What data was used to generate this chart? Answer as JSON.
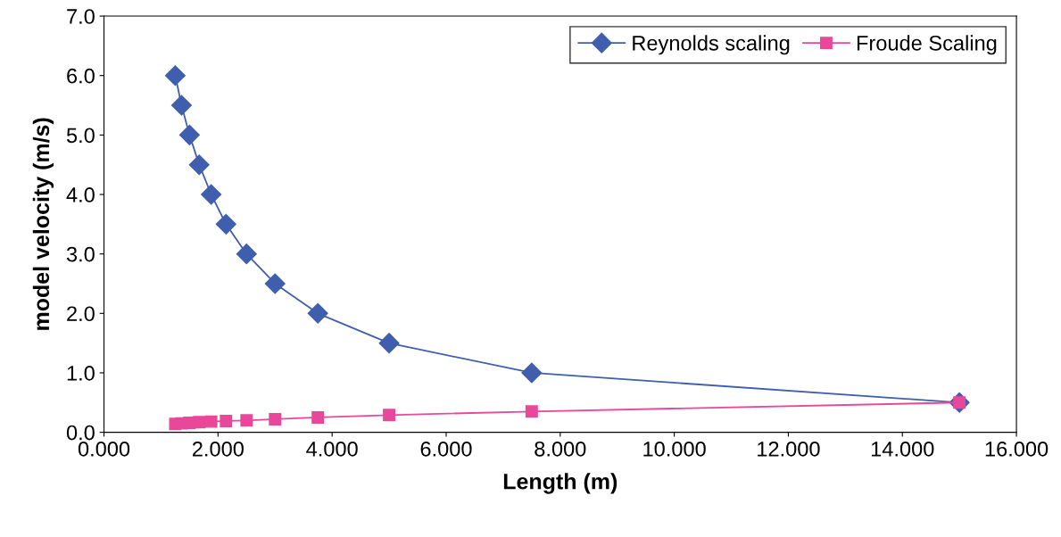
{
  "chart_data": {
    "type": "line",
    "xlabel": "Length (m)",
    "ylabel": "model velocity (m/s)",
    "series": [
      {
        "name": "Reynolds scaling",
        "color": "#3f5fae",
        "marker": "diamond",
        "x": [
          1.25,
          1.36,
          1.5,
          1.67,
          1.88,
          2.14,
          2.5,
          3,
          3.75,
          5,
          7.5,
          15
        ],
        "values": [
          6.0,
          5.5,
          5.0,
          4.5,
          4.0,
          3.5,
          3.0,
          2.5,
          2.0,
          1.5,
          1.0,
          0.5
        ]
      },
      {
        "name": "Froude Scaling",
        "color": "#e8489a",
        "marker": "square",
        "x": [
          1.25,
          1.36,
          1.5,
          1.67,
          1.88,
          2.14,
          2.5,
          3,
          3.75,
          5,
          7.5,
          15
        ],
        "values": [
          0.14,
          0.15,
          0.16,
          0.17,
          0.18,
          0.19,
          0.2,
          0.22,
          0.25,
          0.29,
          0.35,
          0.5
        ]
      }
    ],
    "xlim": [
      0,
      16
    ],
    "xticks": [
      {
        "value": 0,
        "label": "0.000"
      },
      {
        "value": 2,
        "label": "2.000"
      },
      {
        "value": 4,
        "label": "4.000"
      },
      {
        "value": 6,
        "label": "6.000"
      },
      {
        "value": 8,
        "label": "8.000"
      },
      {
        "value": 10,
        "label": "10.000"
      },
      {
        "value": 12,
        "label": "12.000"
      },
      {
        "value": 14,
        "label": "14.000"
      },
      {
        "value": 16,
        "label": "16.000"
      }
    ],
    "ylim": [
      0,
      7
    ],
    "yticks": [
      {
        "value": 0,
        "label": "0.0"
      },
      {
        "value": 1,
        "label": "1.0"
      },
      {
        "value": 2,
        "label": "2.0"
      },
      {
        "value": 3,
        "label": "3.0"
      },
      {
        "value": 4,
        "label": "4.0"
      },
      {
        "value": 5,
        "label": "5.0"
      },
      {
        "value": 6,
        "label": "6.0"
      },
      {
        "value": 7,
        "label": "7.0"
      }
    ],
    "grid": false,
    "legend": "top right",
    "line_style": "solid"
  }
}
